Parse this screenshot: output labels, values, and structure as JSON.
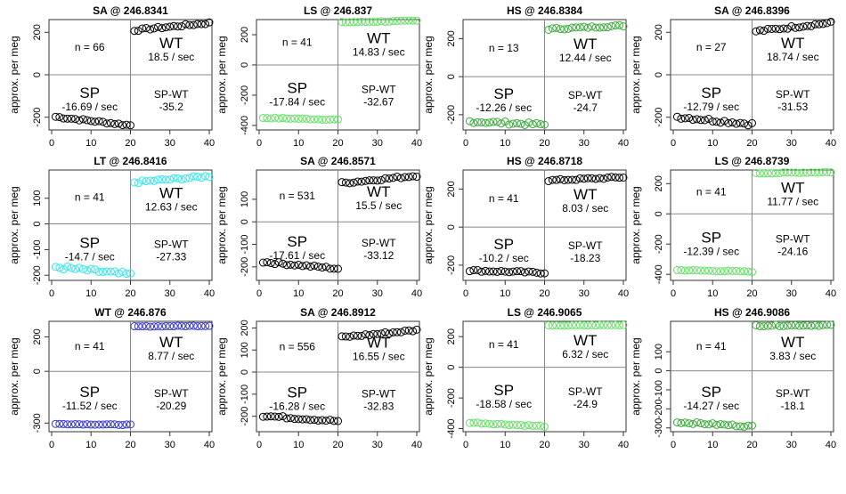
{
  "chart_data": [
    {
      "type": "scatter",
      "title": "SA @ 246.8341",
      "ylabel": "approx. per meg",
      "xlim": [
        0,
        40
      ],
      "ylim": [
        -260,
        260
      ],
      "yticks": [
        -200,
        0,
        200
      ],
      "xticks": [
        0,
        10,
        20,
        30,
        40
      ],
      "sp_color": "#000000",
      "wt_color": "#000000",
      "n_label": "n = 66",
      "sp_label": "SP",
      "sp_rate": "-16.69 / sec",
      "wt_label": "WT",
      "wt_rate": "18.5 / sec",
      "diff_label": "SP-WT",
      "diff_value": "-35.2",
      "series": [
        {
          "role": "SP",
          "x": [
            1,
            20
          ],
          "y0": -198,
          "y1": -238,
          "noise": 5
        },
        {
          "role": "WT",
          "x": [
            21,
            40
          ],
          "y0": 210,
          "y1": 244,
          "noise": 5
        }
      ]
    },
    {
      "type": "scatter",
      "title": "LS @ 246.837",
      "ylabel": "approx. per meg",
      "xlim": [
        0,
        40
      ],
      "ylim": [
        -430,
        300
      ],
      "yticks": [
        -400,
        -200,
        0,
        200
      ],
      "xticks": [
        0,
        10,
        20,
        30,
        40
      ],
      "sp_color": "#66e066",
      "wt_color": "#66e066",
      "n_label": "n = 41",
      "sp_label": "SP",
      "sp_rate": "-17.84 / sec",
      "wt_label": "WT",
      "wt_rate": "14.83 / sec",
      "diff_label": "SP-WT",
      "diff_value": "-32.67",
      "series": [
        {
          "role": "SP",
          "x": [
            1,
            20
          ],
          "y0": -350,
          "y1": -362,
          "noise": 3
        },
        {
          "role": "WT",
          "x": [
            21,
            40
          ],
          "y0": 282,
          "y1": 292,
          "noise": 3
        }
      ]
    },
    {
      "type": "scatter",
      "title": "HS @ 246.8384",
      "ylabel": "approx. per meg",
      "xlim": [
        0,
        40
      ],
      "ylim": [
        -280,
        300
      ],
      "yticks": [
        -200,
        0,
        200
      ],
      "xticks": [
        0,
        10,
        20,
        30,
        40
      ],
      "sp_color": "#3aaa3a",
      "wt_color": "#3aaa3a",
      "n_label": "n = 13",
      "sp_label": "SP",
      "sp_rate": "-12.26 / sec",
      "wt_label": "WT",
      "wt_rate": "12.44 / sec",
      "diff_label": "SP-WT",
      "diff_value": "-24.7",
      "series": [
        {
          "role": "SP",
          "x": [
            1,
            20
          ],
          "y0": -235,
          "y1": -252,
          "noise": 8
        },
        {
          "role": "WT",
          "x": [
            21,
            40
          ],
          "y0": 250,
          "y1": 268,
          "noise": 5
        }
      ]
    },
    {
      "type": "scatter",
      "title": "SA @ 246.8396",
      "ylabel": "approx. per meg",
      "xlim": [
        0,
        40
      ],
      "ylim": [
        -260,
        260
      ],
      "yticks": [
        -200,
        0,
        200
      ],
      "xticks": [
        0,
        10,
        20,
        30,
        40
      ],
      "sp_color": "#000000",
      "wt_color": "#000000",
      "n_label": "n = 27",
      "sp_label": "SP",
      "sp_rate": "-12.79 / sec",
      "wt_label": "WT",
      "wt_rate": "18.74 / sec",
      "diff_label": "SP-WT",
      "diff_value": "-31.53",
      "series": [
        {
          "role": "SP",
          "x": [
            1,
            20
          ],
          "y0": -198,
          "y1": -232,
          "noise": 8
        },
        {
          "role": "WT",
          "x": [
            21,
            40
          ],
          "y0": 205,
          "y1": 245,
          "noise": 6
        }
      ]
    },
    {
      "type": "scatter",
      "title": "LT @ 246.8416",
      "ylabel": "approx. per meg",
      "xlim": [
        0,
        40
      ],
      "ylim": [
        -220,
        210
      ],
      "yticks": [
        -200,
        -100,
        0,
        100
      ],
      "xticks": [
        0,
        10,
        20,
        30,
        40
      ],
      "sp_color": "#33e8ee",
      "wt_color": "#33e8ee",
      "n_label": "n = 41",
      "sp_label": "SP",
      "sp_rate": "-14.7 / sec",
      "wt_label": "WT",
      "wt_rate": "12.63 / sec",
      "diff_label": "SP-WT",
      "diff_value": "-27.33",
      "series": [
        {
          "role": "SP",
          "x": [
            1,
            20
          ],
          "y0": -168,
          "y1": -198,
          "noise": 8
        },
        {
          "role": "WT",
          "x": [
            21,
            40
          ],
          "y0": 162,
          "y1": 186,
          "noise": 5
        }
      ]
    },
    {
      "type": "scatter",
      "title": "SA @ 246.8571",
      "ylabel": "approx. per meg",
      "xlim": [
        0,
        40
      ],
      "ylim": [
        -260,
        230
      ],
      "yticks": [
        -200,
        -100,
        0,
        100
      ],
      "xticks": [
        0,
        10,
        20,
        30,
        40
      ],
      "sp_color": "#000000",
      "wt_color": "#000000",
      "n_label": "n = 531",
      "sp_label": "SP",
      "sp_rate": "-17.61 / sec",
      "wt_label": "WT",
      "wt_rate": "15.5 / sec",
      "diff_label": "SP-WT",
      "diff_value": "-33.12",
      "series": [
        {
          "role": "SP",
          "x": [
            1,
            20
          ],
          "y0": -178,
          "y1": -208,
          "noise": 5
        },
        {
          "role": "WT",
          "x": [
            21,
            40
          ],
          "y0": 172,
          "y1": 205,
          "noise": 5
        }
      ]
    },
    {
      "type": "scatter",
      "title": "HS @ 246.8718",
      "ylabel": "approx. per meg",
      "xlim": [
        0,
        40
      ],
      "ylim": [
        -280,
        300
      ],
      "yticks": [
        -200,
        0,
        200
      ],
      "xticks": [
        0,
        10,
        20,
        30,
        40
      ],
      "sp_color": "#000000",
      "wt_color": "#000000",
      "n_label": "n = 41",
      "sp_label": "SP",
      "sp_rate": "-10.2 / sec",
      "wt_label": "WT",
      "wt_rate": "8.03 / sec",
      "diff_label": "SP-WT",
      "diff_value": "-18.23",
      "series": [
        {
          "role": "SP",
          "x": [
            1,
            20
          ],
          "y0": -228,
          "y1": -240,
          "noise": 5
        },
        {
          "role": "WT",
          "x": [
            21,
            40
          ],
          "y0": 245,
          "y1": 262,
          "noise": 5
        }
      ]
    },
    {
      "type": "scatter",
      "title": "LS @ 246.8739",
      "ylabel": "approx. per meg",
      "xlim": [
        0,
        40
      ],
      "ylim": [
        -440,
        290
      ],
      "yticks": [
        -400,
        -200,
        0,
        200
      ],
      "xticks": [
        0,
        10,
        20,
        30,
        40
      ],
      "sp_color": "#66e066",
      "wt_color": "#66e066",
      "n_label": "n = 41",
      "sp_label": "SP",
      "sp_rate": "-12.39 / sec",
      "wt_label": "WT",
      "wt_rate": "11.77 / sec",
      "diff_label": "SP-WT",
      "diff_value": "-24.16",
      "series": [
        {
          "role": "SP",
          "x": [
            1,
            20
          ],
          "y0": -372,
          "y1": -382,
          "noise": 3
        },
        {
          "role": "WT",
          "x": [
            21,
            40
          ],
          "y0": 268,
          "y1": 276,
          "noise": 3
        }
      ]
    },
    {
      "type": "scatter",
      "title": "WT @ 246.876",
      "ylabel": "approx. per meg",
      "xlim": [
        0,
        40
      ],
      "ylim": [
        -350,
        290
      ],
      "yticks": [
        -300,
        0,
        200
      ],
      "xticks": [
        0,
        10,
        20,
        30,
        40
      ],
      "sp_color": "#3333cc",
      "wt_color": "#3333cc",
      "n_label": "n = 41",
      "sp_label": "SP",
      "sp_rate": "-11.52 / sec",
      "wt_label": "WT",
      "wt_rate": "8.77 / sec",
      "diff_label": "SP-WT",
      "diff_value": "-20.29",
      "series": [
        {
          "role": "SP",
          "x": [
            1,
            20
          ],
          "y0": -305,
          "y1": -310,
          "noise": 2
        },
        {
          "role": "WT",
          "x": [
            21,
            40
          ],
          "y0": 260,
          "y1": 264,
          "noise": 2
        }
      ]
    },
    {
      "type": "scatter",
      "title": "SA @ 246.8912",
      "ylabel": "approx. per meg",
      "xlim": [
        0,
        40
      ],
      "ylim": [
        -270,
        230
      ],
      "yticks": [
        -200,
        -100,
        0,
        100,
        200
      ],
      "xticks": [
        0,
        10,
        20,
        30,
        40
      ],
      "sp_color": "#000000",
      "wt_color": "#000000",
      "n_label": "n = 556",
      "sp_label": "SP",
      "sp_rate": "-16.28 / sec",
      "wt_label": "WT",
      "wt_rate": "16.55 / sec",
      "diff_label": "SP-WT",
      "diff_value": "-32.83",
      "series": [
        {
          "role": "SP",
          "x": [
            1,
            20
          ],
          "y0": -198,
          "y1": -222,
          "noise": 5
        },
        {
          "role": "WT",
          "x": [
            21,
            40
          ],
          "y0": 158,
          "y1": 190,
          "noise": 5
        }
      ]
    },
    {
      "type": "scatter",
      "title": "LS @ 246.9065",
      "ylabel": "approx. per meg",
      "xlim": [
        0,
        40
      ],
      "ylim": [
        -420,
        300
      ],
      "yticks": [
        -400,
        -200,
        0,
        200
      ],
      "xticks": [
        0,
        10,
        20,
        30,
        40
      ],
      "sp_color": "#66e066",
      "wt_color": "#66e066",
      "n_label": "n = 41",
      "sp_label": "SP",
      "sp_rate": "-18.58 / sec",
      "wt_label": "WT",
      "wt_rate": "6.32 / sec",
      "diff_label": "SP-WT",
      "diff_value": "-24.9",
      "series": [
        {
          "role": "SP",
          "x": [
            1,
            20
          ],
          "y0": -360,
          "y1": -385,
          "noise": 4
        },
        {
          "role": "WT",
          "x": [
            21,
            40
          ],
          "y0": 272,
          "y1": 276,
          "noise": 2
        }
      ]
    },
    {
      "type": "scatter",
      "title": "HS @ 246.9086",
      "ylabel": "approx. per meg",
      "xlim": [
        0,
        40
      ],
      "ylim": [
        -320,
        260
      ],
      "yticks": [
        -300,
        -200,
        -100,
        0,
        100
      ],
      "xticks": [
        0,
        10,
        20,
        30,
        40
      ],
      "sp_color": "#3aaa3a",
      "wt_color": "#3aaa3a",
      "n_label": "n = 41",
      "sp_label": "SP",
      "sp_rate": "-14.27 / sec",
      "wt_label": "WT",
      "wt_rate": "3.83 / sec",
      "diff_label": "SP-WT",
      "diff_value": "-18.1",
      "series": [
        {
          "role": "SP",
          "x": [
            1,
            20
          ],
          "y0": -270,
          "y1": -292,
          "noise": 5
        },
        {
          "role": "WT",
          "x": [
            21,
            40
          ],
          "y0": 238,
          "y1": 240,
          "noise": 4
        }
      ]
    }
  ]
}
